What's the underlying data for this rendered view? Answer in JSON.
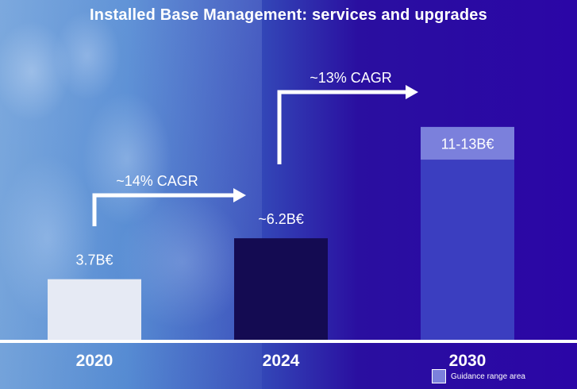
{
  "chart_data": {
    "type": "bar",
    "title": "Installed Base Management: services and upgrades",
    "categories": [
      "2020",
      "2024",
      "2030"
    ],
    "values": [
      3.7,
      6.2,
      13
    ],
    "range": [
      null,
      null,
      [
        11,
        13
      ]
    ],
    "value_labels": [
      "3.7B€",
      "~6.2B€",
      "11-13B€"
    ],
    "unit": "B€",
    "ylim": [
      0,
      16
    ],
    "annotations": [
      {
        "label": "~14% CAGR",
        "from": "2020",
        "to": "2024"
      },
      {
        "label": "~13% CAGR",
        "from": "2024",
        "to": "2030"
      }
    ],
    "legend": {
      "label": "Guidance range area",
      "position": "bottom-right"
    },
    "colors": {
      "bar_2020": "#e6eaf4",
      "bar_2024": "#140b52",
      "bar_2030": "#3b3ec0",
      "range_area": "#7b80dc",
      "axis": "#ffffff"
    },
    "grid": false
  }
}
